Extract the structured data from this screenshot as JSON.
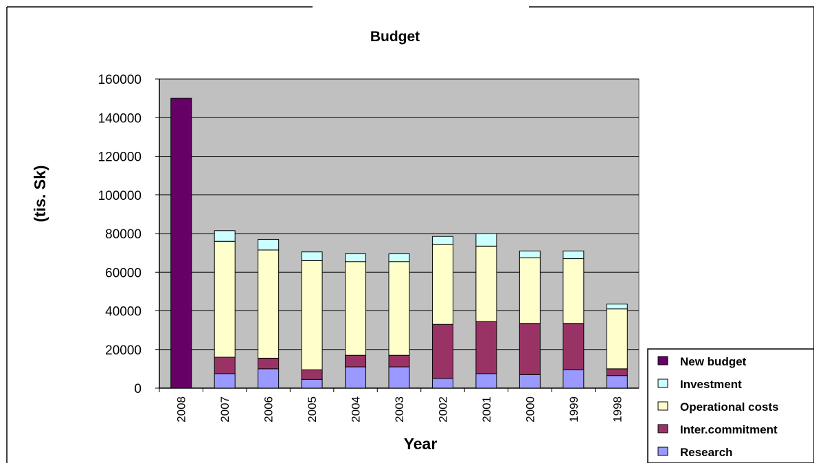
{
  "chart_data": {
    "type": "bar",
    "stacked": true,
    "title": "Budget",
    "xlabel": "Year",
    "ylabel": "(tis. Sk)",
    "ylim": [
      0,
      160000
    ],
    "yticks": [
      0,
      20000,
      40000,
      60000,
      80000,
      100000,
      120000,
      140000,
      160000
    ],
    "grid": true,
    "legend_position": "bottom-right",
    "categories": [
      "2008",
      "2007",
      "2006",
      "2005",
      "2004",
      "2003",
      "2002",
      "2001",
      "2000",
      "1999",
      "1998"
    ],
    "series": [
      {
        "name": "Research",
        "color": "#9999ff",
        "values": [
          0,
          7500,
          10000,
          4500,
          11000,
          11000,
          5000,
          7500,
          7000,
          9500,
          6500
        ]
      },
      {
        "name": "Inter.commitment",
        "color": "#993366",
        "values": [
          0,
          8500,
          5500,
          5000,
          6000,
          6000,
          28000,
          27000,
          26500,
          24000,
          3500
        ]
      },
      {
        "name": "Operational costs",
        "color": "#ffffcc",
        "values": [
          0,
          60000,
          56000,
          56500,
          48500,
          48500,
          41500,
          39000,
          34000,
          33500,
          31000
        ]
      },
      {
        "name": "Investment",
        "color": "#ccffff",
        "values": [
          0,
          5500,
          5500,
          4500,
          4000,
          4000,
          4000,
          6500,
          3500,
          4000,
          2500
        ]
      },
      {
        "name": "New budget",
        "color": "#660066",
        "values": [
          150000,
          0,
          0,
          0,
          0,
          0,
          0,
          0,
          0,
          0,
          0
        ]
      }
    ],
    "legend_order": [
      "New budget",
      "Investment",
      "Operational costs",
      "Inter.commitment",
      "Research"
    ],
    "plot_background": "#c0c0c0"
  }
}
